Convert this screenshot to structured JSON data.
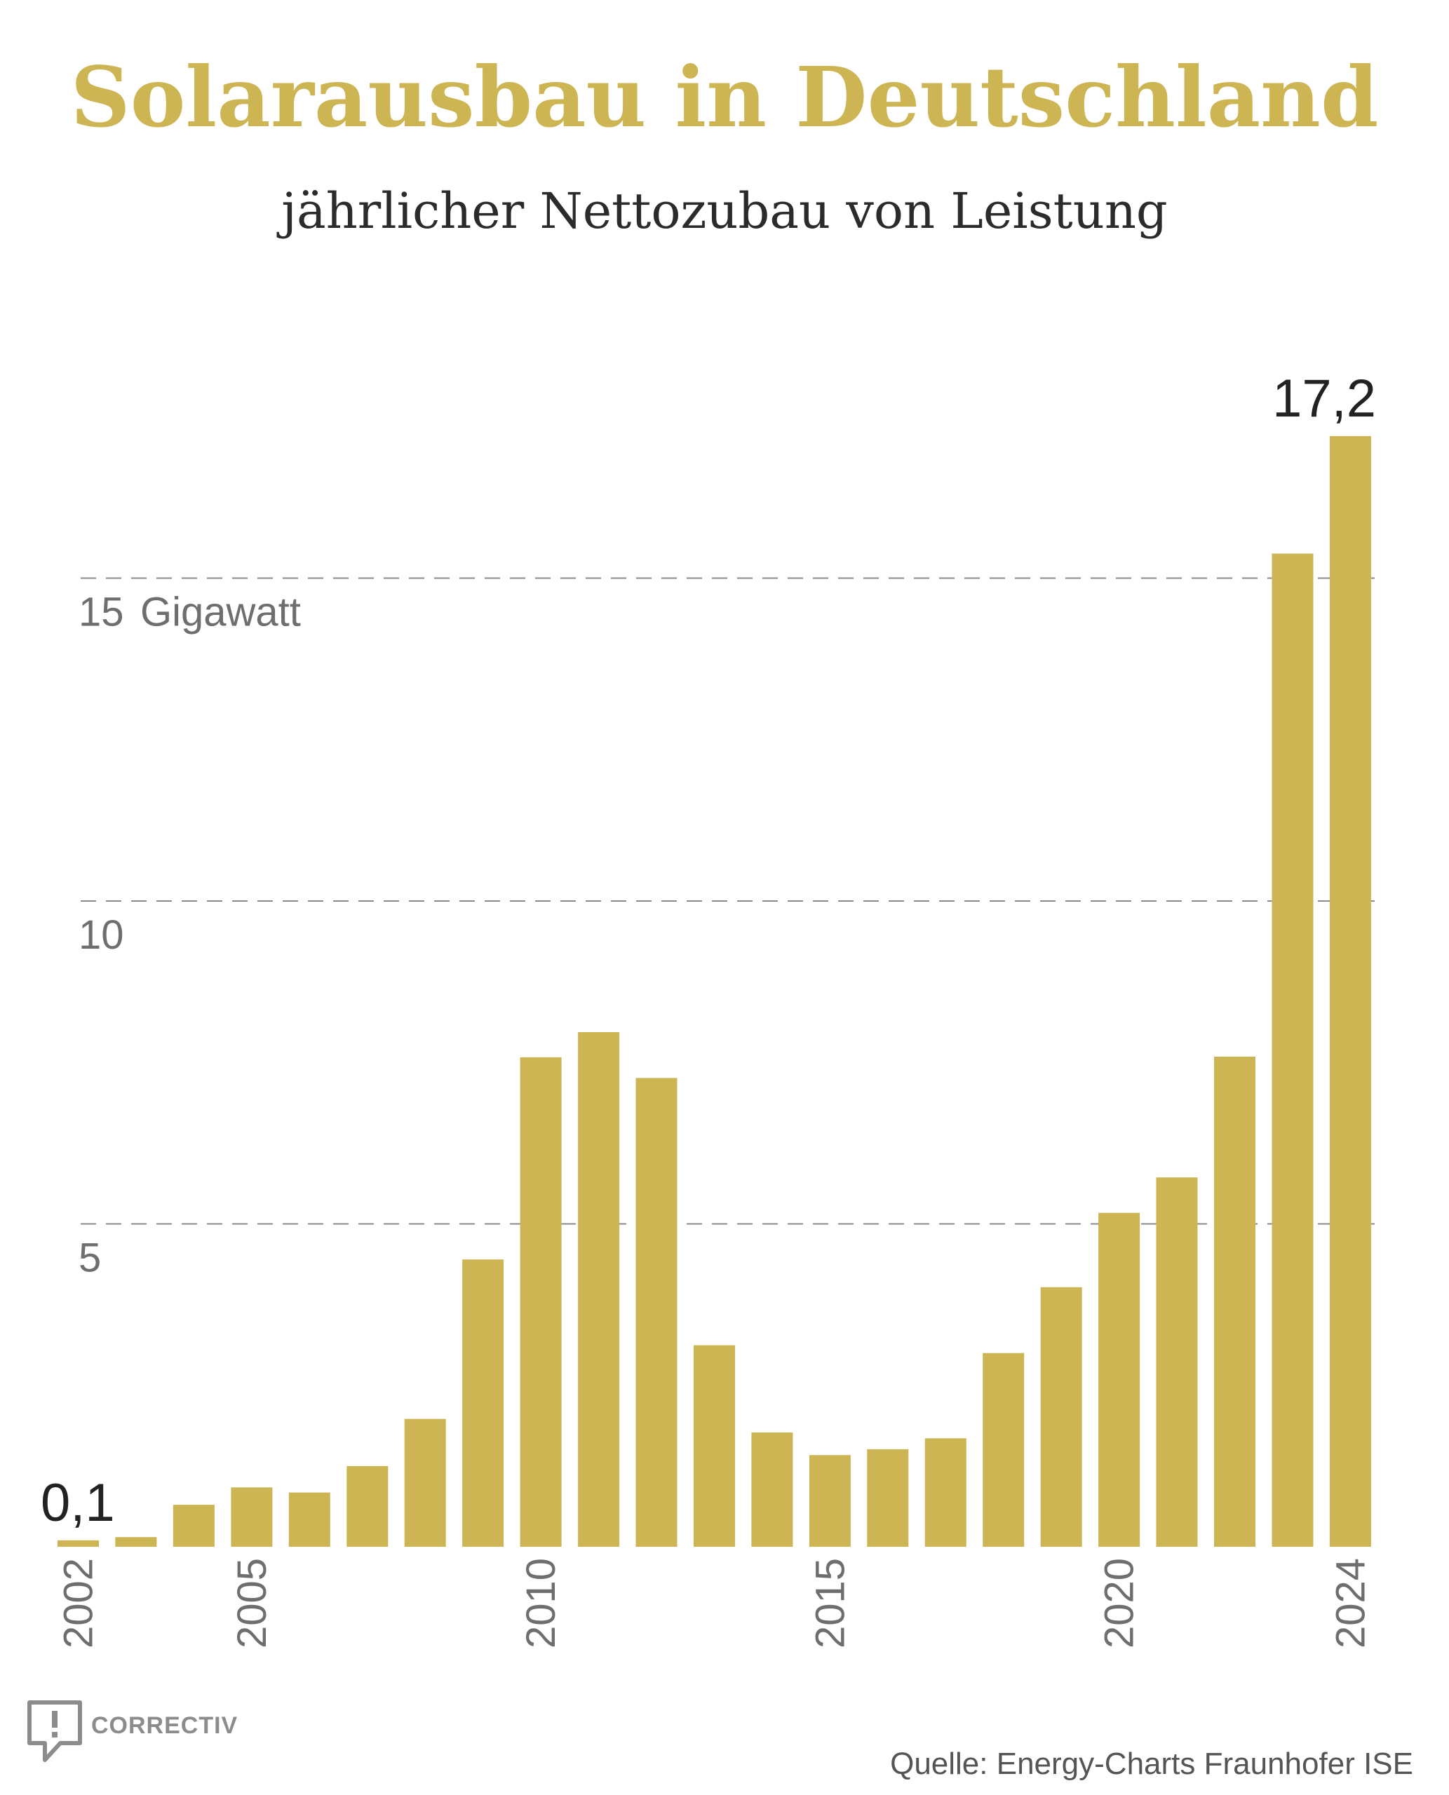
{
  "chart_data": {
    "type": "bar",
    "title": "Solarausbau in Deutschland",
    "subtitle": "jährlicher Nettozubau von Leistung",
    "unit_label": "Gigawatt",
    "ylim": [
      0,
      17.2
    ],
    "yticks": [
      {
        "value": 5,
        "label": "5"
      },
      {
        "value": 10,
        "label": "10"
      },
      {
        "value": 15,
        "label": "15"
      }
    ],
    "grid": "dashed horizontal",
    "bar_color": "#cdb554",
    "categories": [
      2002,
      2003,
      2004,
      2005,
      2006,
      2007,
      2008,
      2009,
      2010,
      2011,
      2012,
      2013,
      2014,
      2015,
      2016,
      2017,
      2018,
      2019,
      2020,
      2021,
      2022,
      2023,
      2024
    ],
    "values": [
      0.1,
      0.15,
      0.65,
      0.92,
      0.84,
      1.25,
      1.98,
      4.45,
      7.58,
      7.97,
      7.26,
      3.12,
      1.77,
      1.42,
      1.51,
      1.68,
      3.0,
      4.02,
      5.17,
      5.72,
      7.59,
      15.38,
      17.2
    ],
    "xtick_labels": [
      "2002",
      "2005",
      "2010",
      "2015",
      "2020",
      "2024"
    ],
    "data_labels": [
      {
        "category": 2002,
        "text": "0,1"
      },
      {
        "category": 2024,
        "text": "17,2"
      }
    ]
  },
  "source": "Quelle: Energy-Charts Fraunhofer ISE",
  "brand": {
    "name": "CORRECTIV",
    "icon": "correctiv-logo-icon"
  }
}
